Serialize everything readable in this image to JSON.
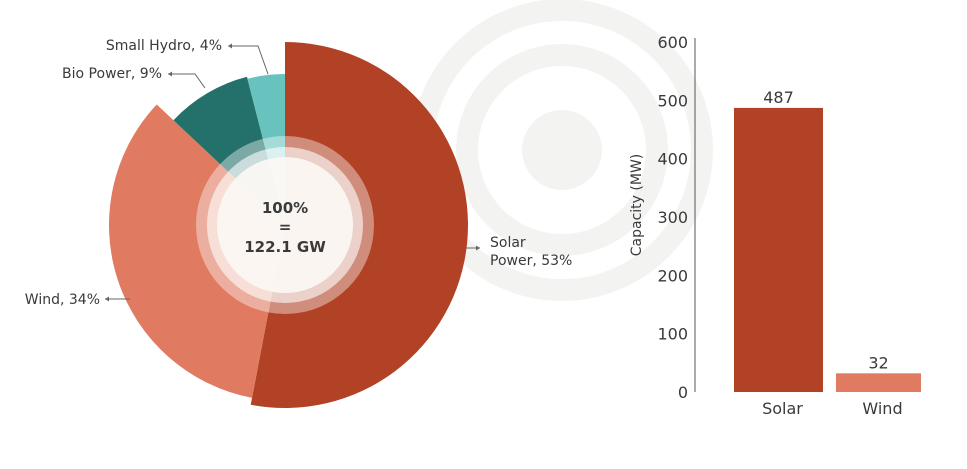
{
  "chart_data": [
    {
      "type": "pie",
      "variant": "variable-radius donut",
      "center_label": {
        "line1": "100%",
        "line2": "=",
        "line3": "122.1 GW"
      },
      "slices": [
        {
          "label": "Solar Power, 53%",
          "label_lines": [
            "Solar",
            "Power, 53%"
          ],
          "value": 53,
          "color": "#b14226"
        },
        {
          "label": "Wind, 34%",
          "label_lines": [
            "Wind, 34%"
          ],
          "value": 34,
          "color": "#e07a60"
        },
        {
          "label": "Bio Power, 9%",
          "label_lines": [
            "Bio Power, 9%"
          ],
          "value": 9,
          "color": "#24706b"
        },
        {
          "label": "Small Hydro, 4%",
          "label_lines": [
            "Small Hydro, 4%"
          ],
          "value": 4,
          "color": "#68c3be"
        }
      ]
    },
    {
      "type": "bar",
      "categories": [
        "Solar",
        "Wind"
      ],
      "values": [
        487,
        32
      ],
      "value_labels": [
        "487",
        "32"
      ],
      "colors": [
        "#b14226",
        "#e07a60"
      ],
      "xlabel": "",
      "ylabel": "Capacity (MW)",
      "ylim": [
        0,
        600
      ],
      "yticks": [
        "0",
        "100",
        "200",
        "300",
        "400",
        "500",
        "600"
      ],
      "grid": false
    }
  ]
}
